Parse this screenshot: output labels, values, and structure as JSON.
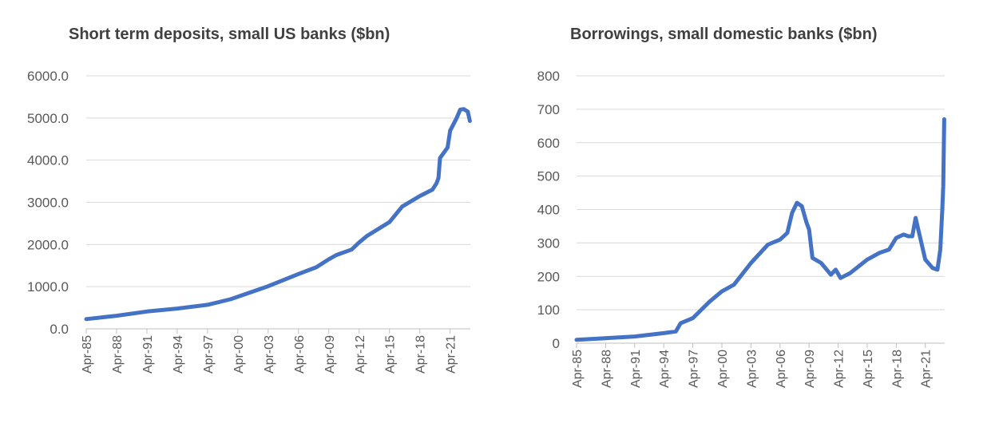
{
  "chart_data": [
    {
      "type": "line",
      "title": "Short term deposits, small US banks ($bn)",
      "xlabel": "",
      "ylabel": "",
      "ylim": [
        0,
        6000
      ],
      "yticks": [
        "0.0",
        "1000.0",
        "2000.0",
        "3000.0",
        "4000.0",
        "5000.0",
        "6000.0"
      ],
      "xticks": [
        "Apr-85",
        "Apr-88",
        "Apr-91",
        "Apr-94",
        "Apr-97",
        "Apr-00",
        "Apr-03",
        "Apr-06",
        "Apr-09",
        "Apr-12",
        "Apr-15",
        "Apr-18",
        "Apr-21"
      ],
      "x_range": [
        1985.25,
        2023.25
      ],
      "color": "#4472c4",
      "series": [
        {
          "name": "Short term deposits",
          "x": [
            1985.25,
            1988.25,
            1991.25,
            1994.25,
            1997.25,
            1999.5,
            2000.25,
            2003.25,
            2006.25,
            2008.0,
            2009.25,
            2010.0,
            2011.5,
            2012.25,
            2013.0,
            2015.25,
            2016.5,
            2018.25,
            2019.5,
            2019.9,
            2020.1,
            2020.25,
            2021.0,
            2021.25,
            2021.9,
            2022.25,
            2022.6,
            2023.0,
            2023.2
          ],
          "values": [
            230,
            310,
            410,
            480,
            570,
            700,
            760,
            1010,
            1300,
            1460,
            1650,
            1750,
            1880,
            2050,
            2200,
            2530,
            2900,
            3150,
            3300,
            3450,
            3580,
            4050,
            4300,
            4700,
            5000,
            5200,
            5210,
            5150,
            4930
          ]
        }
      ]
    },
    {
      "type": "line",
      "title": "Borrowings, small domestic banks ($bn)",
      "xlabel": "",
      "ylabel": "",
      "ylim": [
        0,
        800
      ],
      "yticks": [
        "0",
        "100",
        "200",
        "300",
        "400",
        "500",
        "600",
        "700",
        "800"
      ],
      "xticks": [
        "Apr-85",
        "Apr-88",
        "Apr-91",
        "Apr-94",
        "Apr-97",
        "Apr-00",
        "Apr-03",
        "Apr-06",
        "Apr-09",
        "Apr-12",
        "Apr-15",
        "Apr-18",
        "Apr-21"
      ],
      "x_range": [
        1985.25,
        2023.25
      ],
      "color": "#4472c4",
      "series": [
        {
          "name": "Borrowings",
          "x": [
            1985.25,
            1988.25,
            1991.25,
            1994.25,
            1995.5,
            1996.0,
            1997.25,
            1999.0,
            2000.25,
            2001.5,
            2003.25,
            2005.0,
            2006.25,
            2007.0,
            2007.5,
            2008.0,
            2008.5,
            2009.0,
            2009.25,
            2009.6,
            2010.5,
            2011.5,
            2012.0,
            2012.5,
            2013.5,
            2015.25,
            2016.5,
            2017.5,
            2018.25,
            2019.0,
            2019.5,
            2019.9,
            2020.25,
            2020.6,
            2021.25,
            2022.0,
            2022.5,
            2022.8,
            2023.0,
            2023.1,
            2023.2
          ],
          "values": [
            10,
            15,
            20,
            30,
            35,
            60,
            75,
            125,
            155,
            175,
            240,
            295,
            310,
            330,
            390,
            420,
            410,
            360,
            340,
            255,
            240,
            205,
            220,
            195,
            210,
            250,
            270,
            280,
            315,
            325,
            320,
            320,
            375,
            330,
            250,
            225,
            220,
            280,
            400,
            470,
            670
          ]
        }
      ]
    }
  ]
}
